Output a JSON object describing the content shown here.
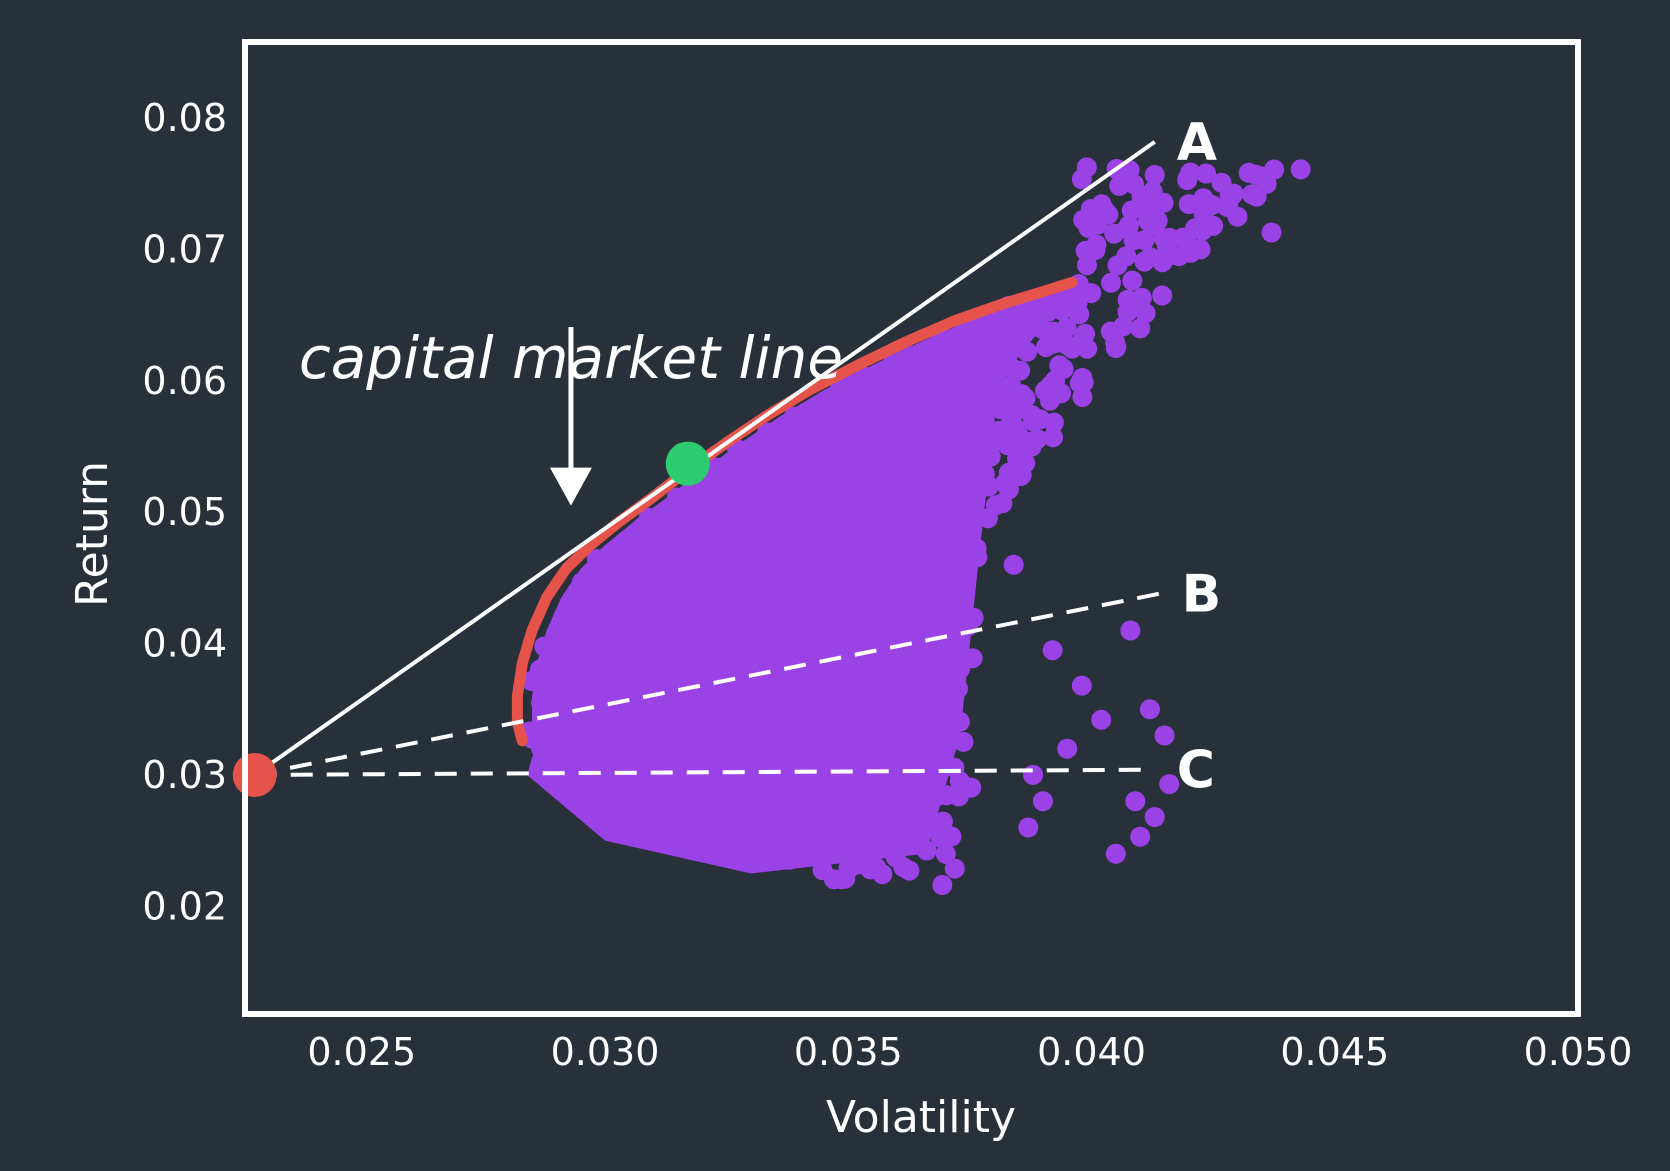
{
  "chart_data": {
    "type": "scatter",
    "xlabel": "Volatility",
    "ylabel": "Return",
    "xlim": [
      0.0226,
      0.05
    ],
    "ylim": [
      0.0118,
      0.0858
    ],
    "xticks": [
      "0.025",
      "0.030",
      "0.035",
      "0.040",
      "0.045",
      "0.050"
    ],
    "yticks": [
      "0.02",
      "0.03",
      "0.04",
      "0.05",
      "0.06",
      "0.07",
      "0.08"
    ],
    "xtick_values": [
      0.025,
      0.03,
      0.035,
      0.04,
      0.045,
      0.05
    ],
    "ytick_values": [
      0.02,
      0.03,
      0.04,
      0.05,
      0.06,
      0.07,
      0.08
    ],
    "grid": false,
    "annotation": "capital market line",
    "annotation_anchor": {
      "x": 0.0293,
      "y": 0.0616
    },
    "annotation_arrow": {
      "from": [
        0.0293,
        0.0641
      ],
      "to": [
        0.0293,
        0.0505
      ]
    },
    "risk_free_point": {
      "x": 0.0228,
      "y": 0.03
    },
    "tangency_point": {
      "x": 0.0317,
      "y": 0.0537
    },
    "efficient_frontier": {
      "x": [
        0.0283,
        0.0282,
        0.0282,
        0.0283,
        0.0285,
        0.0288,
        0.0292,
        0.0297,
        0.0303,
        0.031,
        0.0317,
        0.0325,
        0.0333,
        0.0342,
        0.0352,
        0.0362,
        0.0372,
        0.0382,
        0.039,
        0.0396
      ],
      "y": [
        0.0326,
        0.034,
        0.036,
        0.0385,
        0.041,
        0.0435,
        0.0457,
        0.0475,
        0.0493,
        0.0512,
        0.0532,
        0.0553,
        0.0573,
        0.0593,
        0.0612,
        0.063,
        0.0646,
        0.0659,
        0.0668,
        0.0675
      ]
    },
    "lines": [
      {
        "name": "A",
        "style": "solid",
        "x": [
          0.0228,
          0.0413
        ],
        "y": [
          0.03,
          0.0782
        ]
      },
      {
        "name": "B",
        "style": "dashed",
        "x": [
          0.0228,
          0.0414
        ],
        "y": [
          0.03,
          0.0438
        ]
      },
      {
        "name": "C",
        "style": "dashed",
        "x": [
          0.0228,
          0.0413
        ],
        "y": [
          0.03,
          0.0304
        ]
      }
    ],
    "scatter_region": {
      "x_min": 0.0282,
      "x_max": 0.0445,
      "y_min": 0.021,
      "y_max": 0.0765,
      "points_shown": 900
    },
    "colors": {
      "background": "#28313a",
      "frame": "#ffffff",
      "scatter": "#9b42e6",
      "frontier": "#e5534b",
      "risk_free": "#e5534b",
      "tangency": "#2ecc71",
      "lines": "#ffffff"
    }
  }
}
